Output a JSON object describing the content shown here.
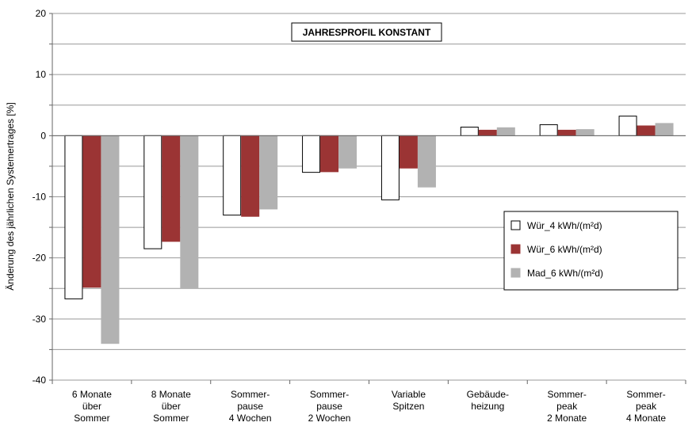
{
  "chart_data": {
    "type": "bar",
    "title": "JAHRESPROFIL KONSTANT",
    "xlabel": "",
    "ylabel": "Änderung des jährlichen Systemertrages  [%]",
    "ylim": [
      -40,
      20
    ],
    "yticks": [
      20,
      10,
      0,
      -10,
      -20,
      -30,
      -40
    ],
    "grid": true,
    "legend_position": "right",
    "categories": [
      [
        "6 Monate",
        "über",
        "Sommer"
      ],
      [
        "8 Monate",
        "über",
        "Sommer"
      ],
      [
        "Sommer-",
        "pause",
        "4 Wochen"
      ],
      [
        "Sommer-",
        "pause",
        "2 Wochen"
      ],
      [
        "Variable",
        "Spitzen"
      ],
      [
        "Gebäude-",
        "heizung"
      ],
      [
        "Sommer-",
        "peak",
        "2 Monate"
      ],
      [
        "Sommer-",
        "peak",
        "4 Monate"
      ]
    ],
    "series": [
      {
        "name": "Wür_4 kWh/(m²d)",
        "color": "#ffffff",
        "stroke": "#000000",
        "values": [
          -26.7,
          -18.5,
          -13.0,
          -6.0,
          -10.5,
          1.4,
          1.8,
          3.2
        ]
      },
      {
        "name": "Wür_6 kWh/(m²d)",
        "color": "#9b3434",
        "stroke": "#9b3434",
        "values": [
          -24.8,
          -17.3,
          -13.2,
          -5.9,
          -5.3,
          0.9,
          0.9,
          1.6
        ]
      },
      {
        "name": "Mad_6 kWh/(m²d)",
        "color": "#b2b2b2",
        "stroke": "#b2b2b2",
        "values": [
          -34.0,
          -25.0,
          -12.0,
          -5.3,
          -8.4,
          1.3,
          1.0,
          2.0
        ]
      }
    ]
  }
}
